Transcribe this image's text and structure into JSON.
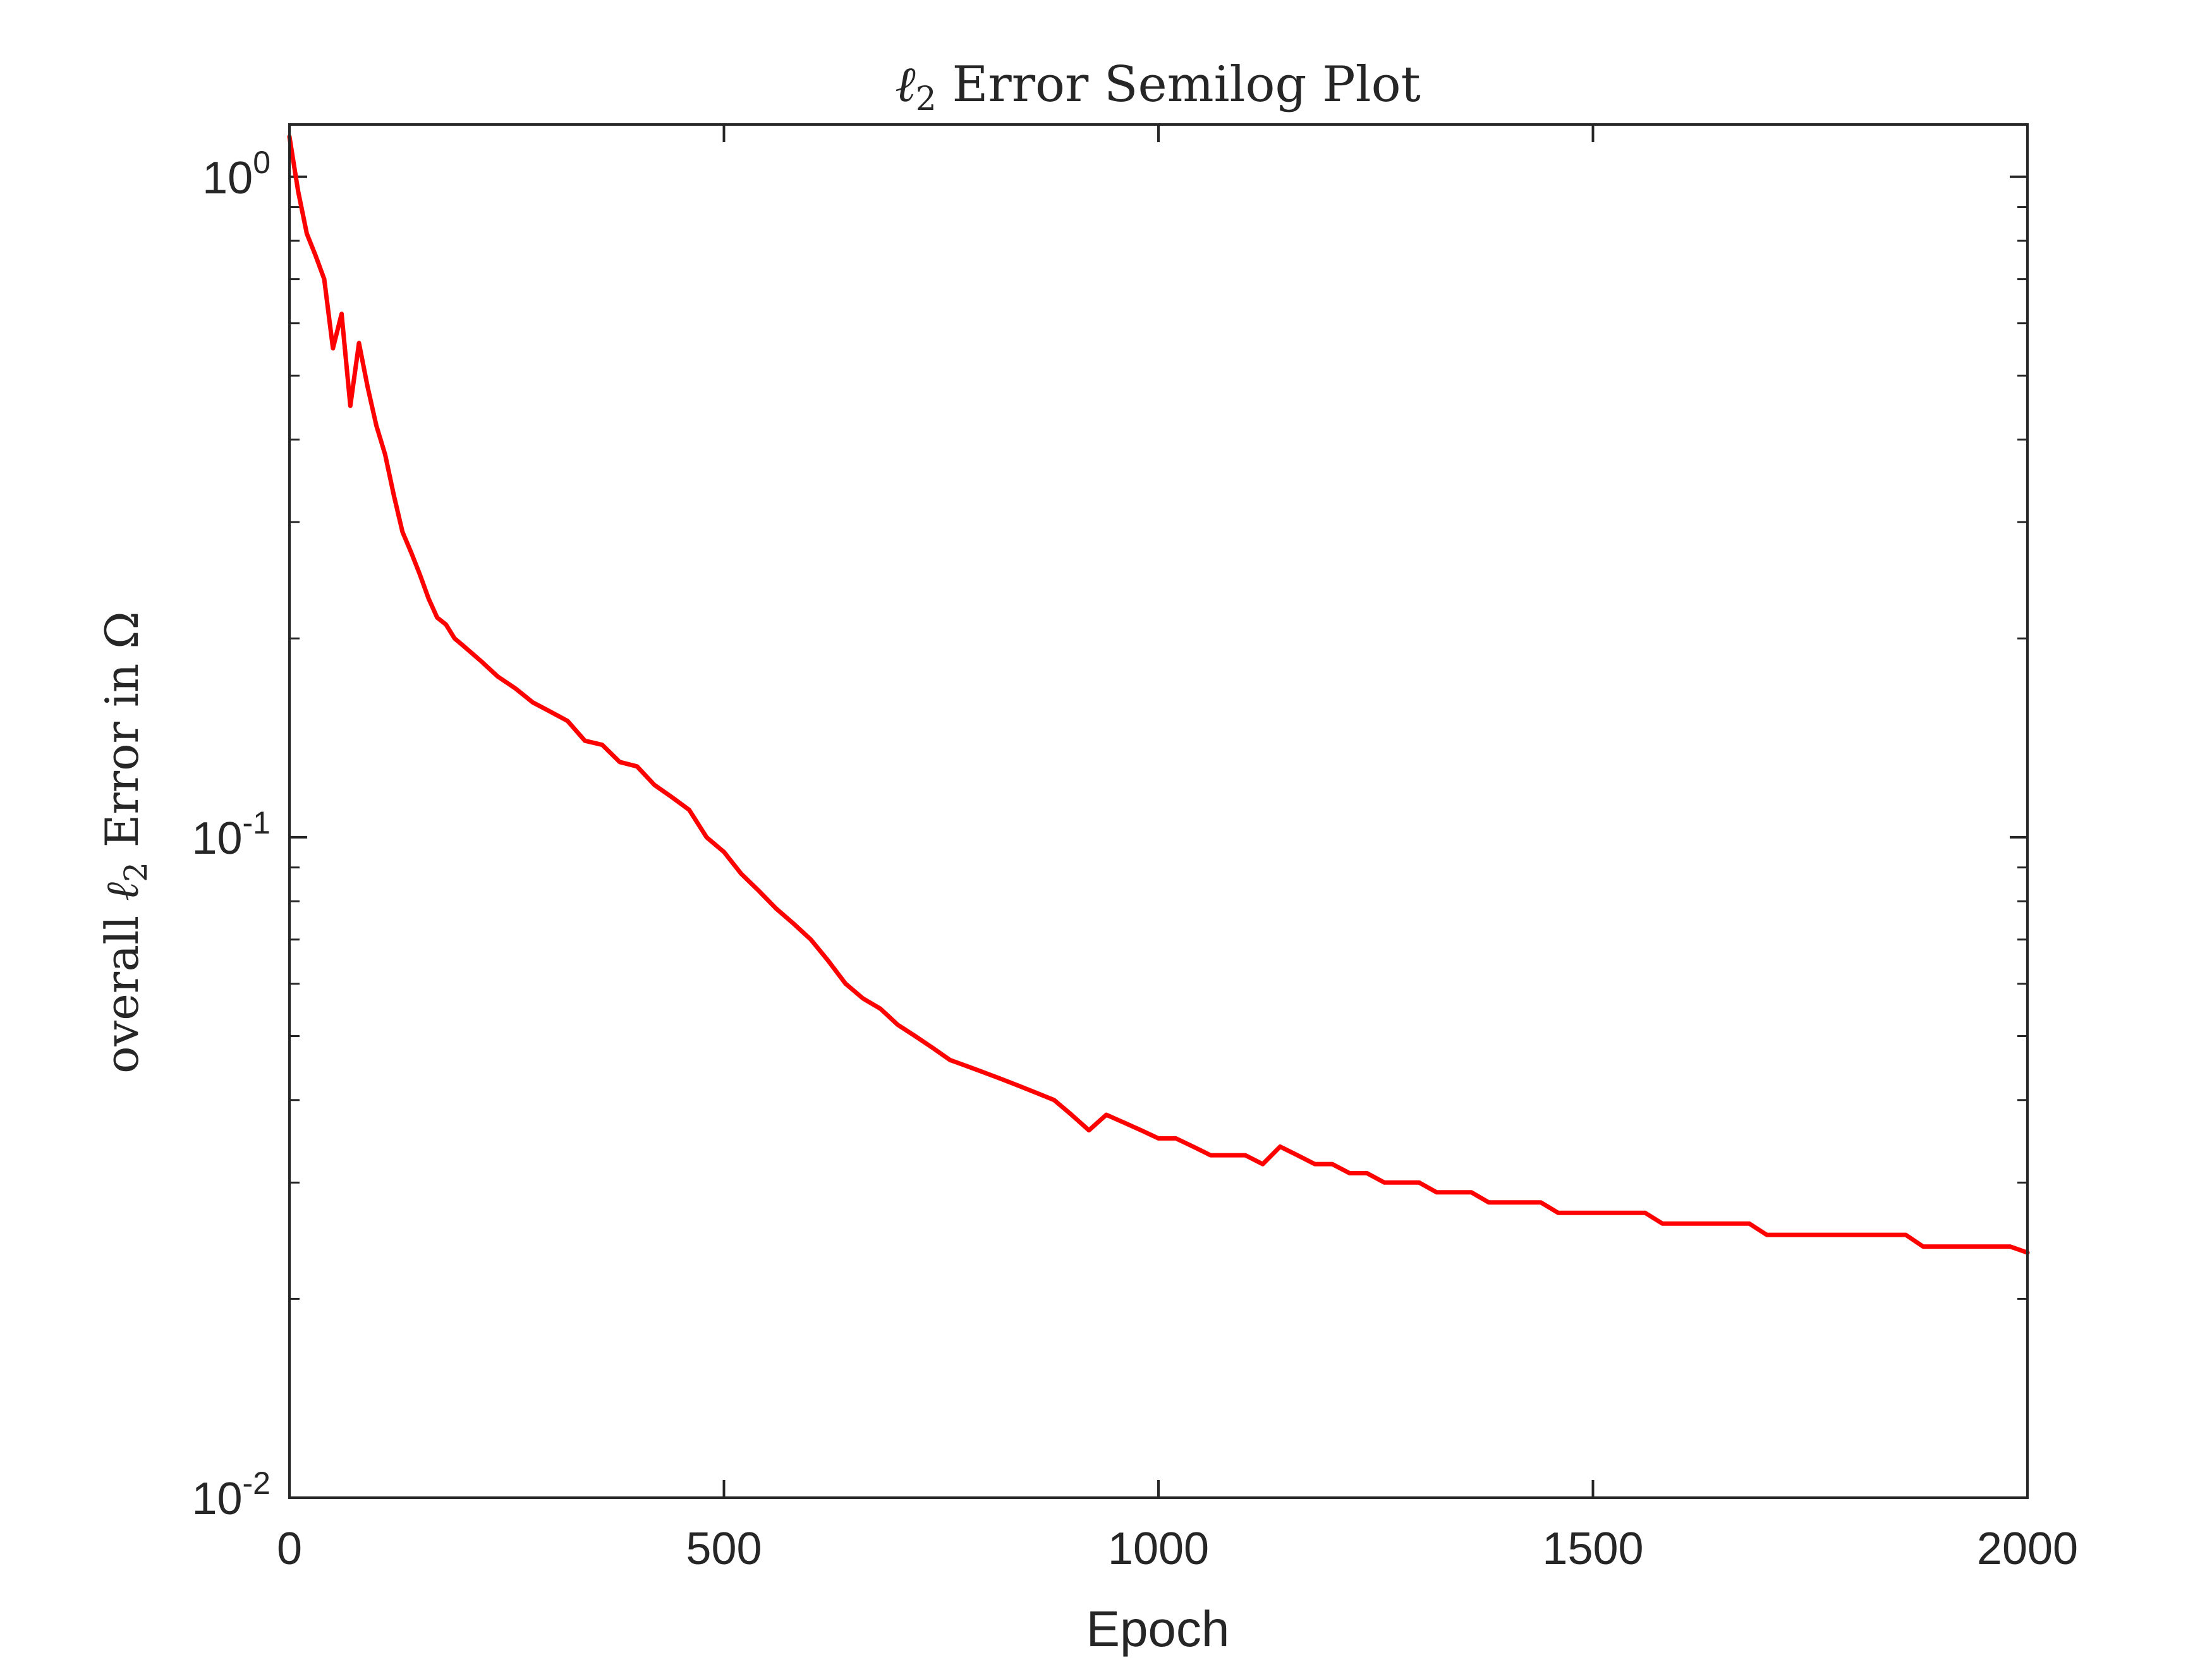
{
  "chart_data": {
    "type": "line",
    "title_parts": {
      "ell": "ℓ",
      "sub": "2",
      "rest": " Error Semilog Plot"
    },
    "xlabel": "Epoch",
    "ylabel_parts": {
      "pre": "overall ",
      "ell": "ℓ",
      "sub": "2",
      "post": " Error in Ω"
    },
    "xlim": [
      0,
      2000
    ],
    "ylim": [
      0.01,
      1.2
    ],
    "yscale": "log",
    "grid": false,
    "xticks": [
      0,
      500,
      1000,
      1500,
      2000
    ],
    "xtick_labels": [
      "0",
      "500",
      "1000",
      "1500",
      "2000"
    ],
    "yticks": [
      {
        "value": 1,
        "base": "10",
        "exp": "0"
      },
      {
        "value": 0.1,
        "base": "10",
        "exp": "-1"
      },
      {
        "value": 0.01,
        "base": "10",
        "exp": "-2"
      }
    ],
    "series": [
      {
        "color": "#ff0000",
        "x": [
          0,
          10,
          20,
          30,
          40,
          50,
          60,
          70,
          80,
          90,
          100,
          110,
          120,
          130,
          140,
          150,
          160,
          170,
          180,
          190,
          200,
          220,
          240,
          260,
          280,
          300,
          320,
          340,
          360,
          380,
          400,
          420,
          440,
          460,
          480,
          500,
          520,
          540,
          560,
          580,
          600,
          620,
          640,
          660,
          680,
          700,
          720,
          740,
          760,
          780,
          800,
          820,
          840,
          860,
          880,
          900,
          920,
          940,
          960,
          980,
          1000,
          1020,
          1040,
          1060,
          1080,
          1100,
          1120,
          1140,
          1160,
          1180,
          1200,
          1220,
          1240,
          1260,
          1280,
          1300,
          1320,
          1340,
          1360,
          1380,
          1400,
          1420,
          1440,
          1460,
          1480,
          1500,
          1520,
          1540,
          1560,
          1580,
          1600,
          1620,
          1640,
          1660,
          1680,
          1700,
          1720,
          1740,
          1760,
          1780,
          1800,
          1820,
          1840,
          1860,
          1880,
          1900,
          1920,
          1940,
          1960,
          1980,
          2000
        ],
        "y": [
          1.15,
          0.95,
          0.82,
          0.76,
          0.7,
          0.55,
          0.62,
          0.45,
          0.56,
          0.48,
          0.42,
          0.38,
          0.33,
          0.29,
          0.27,
          0.25,
          0.23,
          0.215,
          0.21,
          0.2,
          0.195,
          0.185,
          0.175,
          0.168,
          0.16,
          0.155,
          0.15,
          0.14,
          0.138,
          0.13,
          0.128,
          0.12,
          0.115,
          0.11,
          0.1,
          0.095,
          0.088,
          0.083,
          0.078,
          0.074,
          0.07,
          0.065,
          0.06,
          0.057,
          0.055,
          0.052,
          0.05,
          0.048,
          0.046,
          0.045,
          0.044,
          0.043,
          0.042,
          0.041,
          0.04,
          0.038,
          0.036,
          0.038,
          0.037,
          0.036,
          0.035,
          0.035,
          0.034,
          0.033,
          0.033,
          0.033,
          0.032,
          0.034,
          0.033,
          0.032,
          0.032,
          0.031,
          0.031,
          0.03,
          0.03,
          0.03,
          0.029,
          0.029,
          0.029,
          0.028,
          0.028,
          0.028,
          0.028,
          0.027,
          0.027,
          0.027,
          0.027,
          0.027,
          0.027,
          0.026,
          0.026,
          0.026,
          0.026,
          0.026,
          0.026,
          0.025,
          0.025,
          0.025,
          0.025,
          0.025,
          0.025,
          0.025,
          0.025,
          0.025,
          0.024,
          0.024,
          0.024,
          0.024,
          0.024,
          0.024,
          0.0235
        ]
      }
    ]
  }
}
